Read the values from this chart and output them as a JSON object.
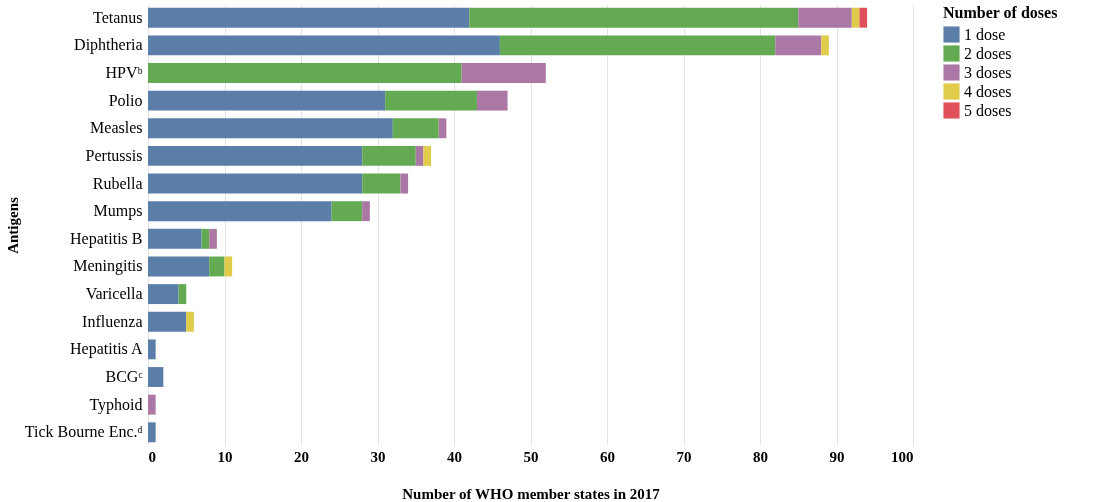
{
  "chart_data": {
    "type": "bar",
    "orientation": "horizontal",
    "stacked": true,
    "xlabel": "Number of WHO member states in 2017",
    "ylabel": "Antigens",
    "legend_title": "Number of doses",
    "legend": "top right",
    "grid": "x",
    "xlim": [
      0,
      100
    ],
    "xticks": [
      0,
      10,
      20,
      30,
      40,
      50,
      60,
      70,
      80,
      90,
      100
    ],
    "categories": [
      "Tetanus",
      "Diphtheria",
      "HPVᵇ",
      "Polio",
      "Measles",
      "Pertussis",
      "Rubella",
      "Mumps",
      "Hepatitis B",
      "Meningitis",
      "Varicella",
      "Influenza",
      "Hepatitis A",
      "BCGᶜ",
      "Typhoid",
      "Tick Bourne Enc.ᵈ"
    ],
    "series": [
      {
        "name": "1 dose",
        "color": "#5a7ea8",
        "values": [
          42,
          46,
          null,
          31,
          32,
          28,
          28,
          24,
          7,
          8,
          4,
          5,
          1,
          2,
          null,
          1
        ]
      },
      {
        "name": "2 doses",
        "color": "#63aa52",
        "values": [
          43,
          36,
          41,
          12,
          6,
          7,
          5,
          4,
          1,
          2,
          1,
          null,
          null,
          null,
          null,
          null
        ]
      },
      {
        "name": "3 doses",
        "color": "#ab78a5",
        "values": [
          7,
          6,
          11,
          4,
          1,
          1,
          1,
          1,
          1,
          null,
          null,
          null,
          null,
          null,
          1,
          null
        ]
      },
      {
        "name": "4 doses",
        "color": "#e1cb4b",
        "values": [
          1,
          1,
          null,
          null,
          null,
          1,
          null,
          null,
          null,
          1,
          null,
          1,
          null,
          null,
          null,
          null
        ]
      },
      {
        "name": "5 doses",
        "color": "#e05058",
        "values": [
          1,
          null,
          null,
          null,
          null,
          null,
          null,
          null,
          null,
          null,
          null,
          null,
          null,
          null,
          null,
          null
        ]
      }
    ]
  }
}
